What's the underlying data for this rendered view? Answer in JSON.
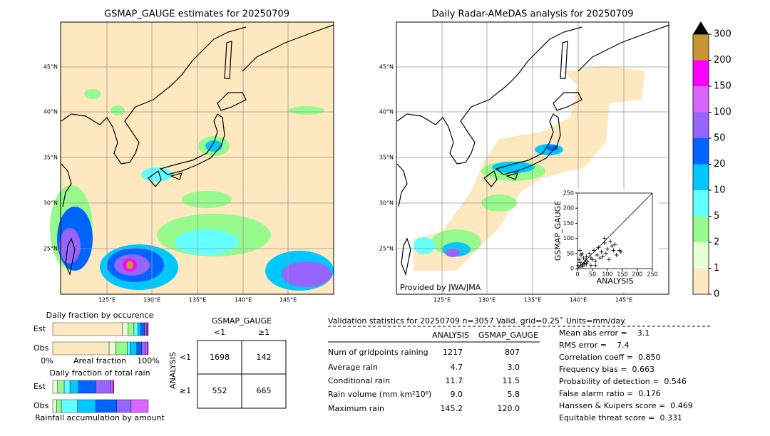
{
  "left_map": {
    "title": "GSMAP_GAUGE estimates for 20250709",
    "lat_labels": [
      "45°N",
      "40°N",
      "35°N",
      "30°N",
      "25°N"
    ],
    "lon_labels": [
      "125°E",
      "130°E",
      "135°E",
      "140°E",
      "145°E"
    ]
  },
  "right_map": {
    "title": "Daily Radar-AMeDAS analysis for 20250709",
    "lat_labels": [
      "45°N",
      "40°N",
      "35°N",
      "30°N",
      "25°N"
    ],
    "lon_labels": [
      "125°E",
      "130°E",
      "135°E",
      "140°E",
      "145°E"
    ],
    "credit": "Provided by JWA/JMA"
  },
  "colorbar": {
    "levels": [
      0,
      1,
      2,
      5,
      10,
      20,
      50,
      100,
      150,
      200,
      300
    ],
    "colors": [
      "#fde8bf",
      "#e6ffd6",
      "#96fa8c",
      "#64ffff",
      "#00c8ff",
      "#0064ff",
      "#9664ff",
      "#dc64ff",
      "#ff00ff",
      "#c89632"
    ],
    "extend_color": "#000000"
  },
  "scatter": {
    "xlabel": "ANALYSIS",
    "ylabel": "GSMAP_GAUGE",
    "xlim": [
      0,
      250
    ],
    "ylim": [
      0,
      250
    ],
    "xticks": [
      0,
      50,
      100,
      150,
      200,
      250
    ],
    "yticks": [
      0,
      50,
      100,
      150,
      200,
      250
    ],
    "x": [
      2,
      5,
      8,
      10,
      12,
      15,
      18,
      20,
      22,
      25,
      28,
      30,
      35,
      40,
      45,
      50,
      55,
      60,
      65,
      70,
      75,
      80,
      85,
      90,
      95,
      100,
      105,
      110,
      115,
      120,
      125,
      130,
      140,
      145,
      8,
      15,
      30,
      45,
      60,
      90
    ],
    "y": [
      10,
      30,
      5,
      20,
      45,
      12,
      8,
      35,
      18,
      15,
      28,
      40,
      22,
      50,
      10,
      30,
      60,
      25,
      45,
      70,
      35,
      55,
      40,
      85,
      50,
      65,
      30,
      90,
      75,
      60,
      80,
      45,
      60,
      55,
      60,
      50,
      15,
      35,
      10,
      100
    ]
  },
  "occurrence": {
    "title": "Daily fraction by occurence",
    "xlabel": "Areal fraction",
    "xmin_label": "0%",
    "xmax_label": "100%",
    "rows": [
      {
        "name": "Est",
        "values": [
          73,
          6,
          6,
          4,
          3,
          4,
          2,
          1,
          1,
          0
        ]
      },
      {
        "name": "Obs",
        "values": [
          59,
          7,
          12,
          3,
          7,
          5,
          4,
          2,
          1,
          0
        ]
      }
    ]
  },
  "total_rain": {
    "title": "Daily fraction of total rain",
    "xlabel": "Rainfall accumulation by amount",
    "rows": [
      {
        "name": "Est",
        "values": [
          0,
          5,
          7,
          6,
          9,
          18,
          16,
          2,
          1,
          0
        ]
      },
      {
        "name": "Obs",
        "values": [
          0,
          4,
          5,
          17,
          19,
          22,
          15,
          18,
          0,
          0
        ]
      }
    ]
  },
  "contingency": {
    "title": "GSMAP_GAUGE",
    "col_labels": [
      "<1",
      "≥1"
    ],
    "row_title": "ANALYSIS",
    "row_labels": [
      "<1",
      "≥1"
    ],
    "cells": [
      [
        1698,
        142
      ],
      [
        552,
        665
      ]
    ]
  },
  "validation": {
    "header": "Validation statistics for 20250709  n=3057 Valid. grid=0.25˚ Units=mm/day.",
    "columns": [
      "ANALYSIS",
      "GSMAP_GAUGE"
    ],
    "rows": [
      {
        "label": "Num of gridpoints raining",
        "values": [
          "1217",
          "807"
        ]
      },
      {
        "label": "Average rain",
        "values": [
          "4.7",
          "3.0"
        ]
      },
      {
        "label": "Conditional rain",
        "values": [
          "11.7",
          "11.5"
        ]
      },
      {
        "label": "Rain volume (mm km²10⁶)",
        "values": [
          "9.0",
          "5.8"
        ]
      },
      {
        "label": "Maximum rain",
        "values": [
          "145.2",
          "120.0"
        ]
      }
    ]
  },
  "scores": [
    "Mean abs error =    3.1",
    "RMS error =    7.4",
    "Correlation coeff =  0.850",
    "Frequency bias =  0.663",
    "Probability of detection =  0.546",
    "False alarm ratio =  0.176",
    "Hanssen & Kuipers score =  0.469",
    "Equitable threat score =  0.331"
  ]
}
